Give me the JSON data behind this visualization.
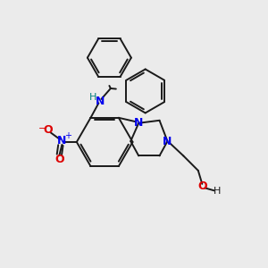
{
  "background_color": "#ebebeb",
  "bond_color": "#1a1a1a",
  "N_color": "#0000ee",
  "O_color": "#dd0000",
  "H_color": "#008080",
  "figsize": [
    3.0,
    3.0
  ],
  "dpi": 100,
  "xlim": [
    0,
    10
  ],
  "ylim": [
    0,
    10
  ]
}
